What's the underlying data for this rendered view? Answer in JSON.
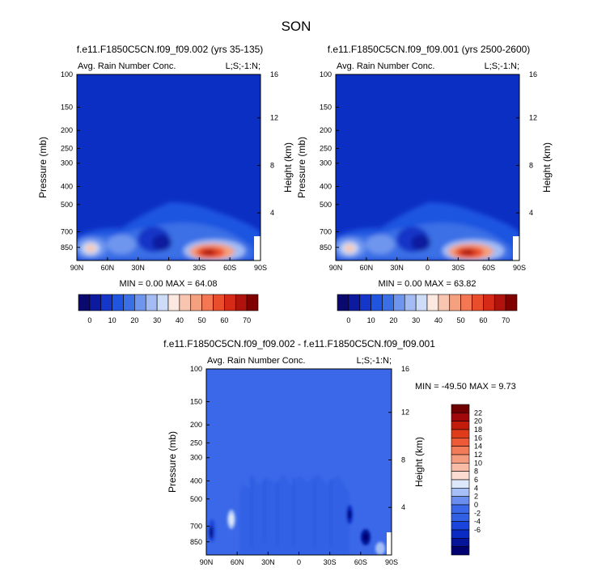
{
  "figure_title": "SON",
  "colors": {
    "palette16": [
      "#0a0a6e",
      "#0d1a9e",
      "#1536c8",
      "#1f55e0",
      "#3a6fe6",
      "#6e96ee",
      "#a3bdf4",
      "#cddcf8",
      "#fbe8e0",
      "#f8c6b0",
      "#f5a07e",
      "#f27752",
      "#ea4d2c",
      "#d72a16",
      "#b0120c",
      "#800000"
    ],
    "diffPalette": [
      "#000070",
      "#06149a",
      "#0a2cc4",
      "#1a44dc",
      "#3260e4",
      "#3a68e8",
      "#6a8eee",
      "#a6bff6",
      "#dde8fa",
      "#fcdcd0",
      "#f8bca6",
      "#f59c7e",
      "#f27c5a",
      "#ee5a38",
      "#e03c1c",
      "#c41c0c",
      "#a0080a",
      "#700000"
    ],
    "bgBlue": "#0c2fc3"
  },
  "panels": [
    {
      "id": "left",
      "title": "f.e11.F1850C5CN.f09_f09.002 (yrs 35-135)",
      "left_label": "Avg. Rain Number Conc.",
      "right_label": "L;S;-1:N;",
      "stats": "MIN =  0.00  MAX = 64.08",
      "ylabel": "Pressure (mb)",
      "ylabel_right": "Height (km)"
    },
    {
      "id": "right",
      "title": "f.e11.F1850C5CN.f09_f09.001 (yrs 2500-2600)",
      "left_label": "Avg. Rain Number Conc.",
      "right_label": "L;S;-1:N;",
      "stats": "MIN =  0.00  MAX = 63.82",
      "ylabel": "Pressure (mb)",
      "ylabel_right": "Height (km)"
    },
    {
      "id": "diff",
      "title": "f.e11.F1850C5CN.f09_f09.002 - f.e11.F1850C5CN.f09_f09.001",
      "left_label": "Avg. Rain Number Conc.",
      "right_label": "L;S;-1:N;",
      "stats": "MIN = -49.50  MAX =  9.73",
      "ylabel": "Pressure (mb)",
      "ylabel_right": "Height (km)"
    }
  ],
  "chart_data": [
    {
      "type": "heatmap",
      "title": "f.e11.F1850C5CN.f09_f09.002 (yrs 35-135)",
      "variable": "Avg. Rain Number Conc.",
      "x_ticks": [
        "90N",
        "60N",
        "30N",
        "0",
        "30S",
        "60S",
        "90S"
      ],
      "pressure_ticks": [
        100,
        150,
        200,
        250,
        300,
        400,
        500,
        700,
        850
      ],
      "height_ticks": [
        4,
        8,
        12,
        16
      ],
      "xlim": [
        90,
        -90
      ],
      "ylim_mb": [
        100,
        1000
      ],
      "min": 0.0,
      "max": 64.08,
      "colorbar_labels": [
        "0",
        "10",
        "20",
        "30",
        "40",
        "50",
        "60",
        "70"
      ]
    },
    {
      "type": "heatmap",
      "title": "f.e11.F1850C5CN.f09_f09.001 (yrs 2500-2600)",
      "variable": "Avg. Rain Number Conc.",
      "x_ticks": [
        "90N",
        "60N",
        "30N",
        "0",
        "30S",
        "60S",
        "90S"
      ],
      "pressure_ticks": [
        100,
        150,
        200,
        250,
        300,
        400,
        500,
        700,
        850
      ],
      "height_ticks": [
        4,
        8,
        12,
        16
      ],
      "xlim": [
        90,
        -90
      ],
      "ylim_mb": [
        100,
        1000
      ],
      "min": 0.0,
      "max": 63.82,
      "colorbar_labels": [
        "0",
        "10",
        "20",
        "30",
        "40",
        "50",
        "60",
        "70"
      ]
    },
    {
      "type": "heatmap",
      "title": "f.e11.F1850C5CN.f09_f09.002 - f.e11.F1850C5CN.f09_f09.001",
      "variable": "Avg. Rain Number Conc.",
      "x_ticks": [
        "90N",
        "60N",
        "30N",
        "0",
        "30S",
        "60S",
        "90S"
      ],
      "pressure_ticks": [
        100,
        150,
        200,
        250,
        300,
        400,
        500,
        700,
        850
      ],
      "height_ticks": [
        4,
        8,
        12,
        16
      ],
      "xlim": [
        90,
        -90
      ],
      "ylim_mb": [
        100,
        1000
      ],
      "min": -49.5,
      "max": 9.73,
      "colorbar_labels": [
        "22",
        "20",
        "18",
        "16",
        "14",
        "12",
        "10",
        "8",
        "6",
        "4",
        "2",
        "0",
        "-2",
        "-4",
        "-6"
      ]
    }
  ]
}
